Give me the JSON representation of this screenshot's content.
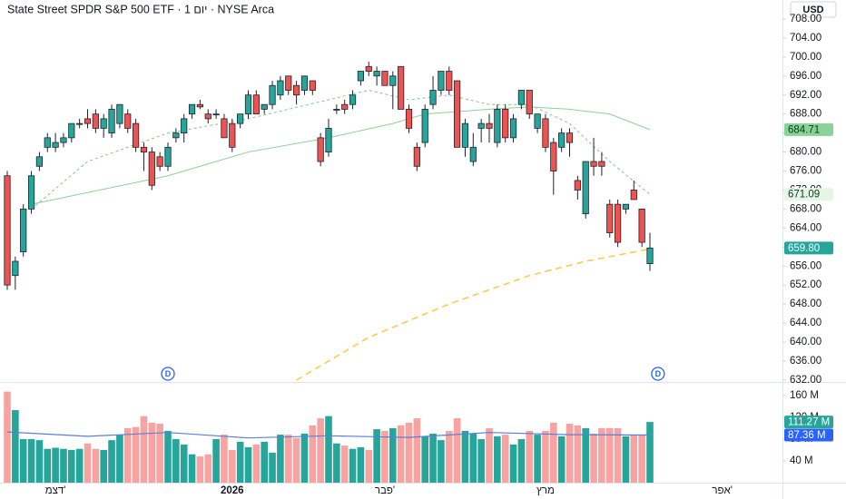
{
  "chart_data": {
    "type": "candlestick",
    "title": "State Street SPDR S&P 500 ETF · 1 יום · NYSE Arca",
    "currency": "USD",
    "up_color": "#26a69a",
    "down_color": "#ef5350",
    "volume_up_color": "#26a69a",
    "volume_down_color": "#f7a3a1",
    "open": [
      675,
      654,
      659,
      668,
      677,
      681,
      681,
      682,
      683,
      686,
      687,
      688,
      685,
      684,
      686,
      688,
      686,
      681,
      680,
      679,
      677,
      683,
      684,
      688,
      690,
      688,
      688,
      687,
      686,
      686,
      688,
      692,
      689,
      690,
      692,
      696,
      694,
      693,
      695,
      683,
      680,
      689,
      690,
      690,
      695,
      698,
      696,
      697,
      694,
      698,
      689,
      681,
      682,
      690,
      693,
      697,
      695,
      681,
      678,
      685,
      686,
      682,
      689,
      683,
      690,
      693,
      685,
      687,
      682,
      681,
      684,
      674,
      667,
      678,
      678,
      669,
      669,
      668,
      672,
      668,
      656.5
    ],
    "high": [
      676,
      658,
      669,
      676,
      680,
      684,
      684,
      684,
      686,
      687,
      689,
      689,
      688,
      690,
      690,
      689,
      687,
      682,
      681,
      680,
      682,
      685,
      688,
      690,
      691,
      689,
      689,
      688,
      687,
      688,
      693,
      693,
      690,
      695,
      696,
      696,
      695,
      696,
      695,
      684,
      687,
      690,
      691,
      693,
      697,
      699,
      698,
      697,
      697,
      698,
      690,
      682,
      690,
      696,
      697,
      698,
      695,
      687,
      684,
      687,
      688,
      690,
      690,
      688,
      693,
      693,
      688,
      688,
      683,
      685,
      685,
      675,
      678,
      683,
      680,
      670,
      670,
      669,
      674,
      668,
      663
    ],
    "low": [
      651,
      651,
      658,
      667,
      676,
      680,
      680,
      681,
      682,
      685,
      685,
      684,
      683,
      683,
      685,
      684,
      680,
      676,
      672,
      676,
      676,
      682,
      682,
      687,
      689,
      686,
      687,
      683,
      680,
      685,
      687,
      688,
      688,
      689,
      691,
      692,
      690,
      692,
      692,
      677,
      679,
      688,
      688,
      689,
      694,
      696,
      694,
      694,
      689,
      689,
      684,
      676,
      681,
      689,
      692,
      692,
      681,
      679,
      677,
      682,
      682,
      681,
      682,
      682,
      689,
      687,
      684,
      680,
      671,
      680,
      679,
      670,
      666,
      675,
      675,
      662,
      660,
      667,
      670,
      660,
      655
    ],
    "close": [
      652,
      657,
      668,
      675,
      679,
      683,
      682,
      683,
      686,
      686,
      686,
      685,
      687,
      689,
      690,
      685,
      681,
      680,
      673,
      677,
      681,
      684,
      687,
      690,
      689.5,
      687,
      688,
      683,
      681,
      688,
      692,
      688,
      690,
      694,
      695,
      693,
      692,
      696,
      693,
      678,
      685,
      689,
      689,
      692,
      697,
      697,
      697,
      694,
      696,
      689,
      685,
      677,
      689,
      693,
      697,
      693,
      681,
      686,
      681,
      686,
      685,
      689,
      683,
      687,
      693,
      688,
      688,
      681,
      676,
      684,
      682,
      672,
      678,
      677,
      677,
      663,
      661,
      669,
      670,
      661,
      659.8
    ],
    "volume": [
      167,
      133,
      80,
      80,
      78,
      62,
      64,
      62,
      60,
      62,
      72,
      62,
      60,
      78,
      88,
      100,
      102,
      122,
      110,
      108,
      95,
      80,
      70,
      52,
      48,
      52,
      80,
      88,
      60,
      75,
      65,
      70,
      75,
      55,
      88,
      88,
      82,
      90,
      105,
      118,
      122,
      72,
      68,
      62,
      65,
      60,
      98,
      95,
      100,
      105,
      110,
      118,
      85,
      90,
      78,
      95,
      118,
      95,
      90,
      80,
      100,
      85,
      88,
      70,
      80,
      95,
      88,
      95,
      110,
      85,
      108,
      105,
      100,
      90,
      100,
      100,
      100,
      85,
      88,
      88,
      111.27
    ],
    "ylim": [
      631.6,
      712
    ],
    "yticks": [
      {
        "value": 708,
        "label": "708.00"
      },
      {
        "value": 704,
        "label": "704.00"
      },
      {
        "value": 700,
        "label": "700.00"
      },
      {
        "value": 696,
        "label": "696.00"
      },
      {
        "value": 692,
        "label": "692.00"
      },
      {
        "value": 688,
        "label": "688.00"
      },
      {
        "value": 684,
        "label": "684.00"
      },
      {
        "value": 680,
        "label": "680.00"
      },
      {
        "value": 676,
        "label": "676.00"
      },
      {
        "value": 672,
        "label": "672.00"
      },
      {
        "value": 668,
        "label": "668.00"
      },
      {
        "value": 664,
        "label": "664.00"
      },
      {
        "value": 660,
        "label": "660.00"
      },
      {
        "value": 656,
        "label": "656.00"
      },
      {
        "value": 652,
        "label": "652.00"
      },
      {
        "value": 648,
        "label": "648.00"
      },
      {
        "value": 644,
        "label": "644.00"
      },
      {
        "value": 640,
        "label": "640.00"
      },
      {
        "value": 636,
        "label": "636.00"
      },
      {
        "value": 632,
        "label": "632.00"
      }
    ],
    "vlim": [
      0,
      183
    ],
    "vticks": [
      {
        "value": 160,
        "label": "160 M"
      },
      {
        "value": 120,
        "label": "120 M"
      },
      {
        "value": 80,
        "label": "80 M"
      },
      {
        "value": 40,
        "label": "40 M"
      }
    ],
    "ma_lines": [
      {
        "color": "#81c784",
        "dash": "3,3",
        "x": [
          3,
          10,
          20,
          30,
          40,
          45,
          50,
          55,
          60,
          65,
          70,
          75,
          80
        ],
        "values": [
          668,
          678,
          684,
          687,
          691,
          693,
          691,
          692,
          690,
          690,
          686,
          678,
          671.09
        ]
      },
      {
        "color": "#8fcf97",
        "dash": "",
        "x": [
          3,
          20,
          30,
          40,
          48,
          52,
          60,
          65,
          70,
          75,
          80
        ],
        "values": [
          669,
          675,
          680,
          683,
          686,
          688,
          689,
          689.5,
          689,
          688,
          684.71
        ]
      },
      {
        "color": "#ffc83d",
        "dash": "7,5",
        "x": [
          36,
          45,
          55,
          65,
          72,
          80
        ],
        "values": [
          632,
          641,
          648,
          654,
          657,
          659.6
        ]
      }
    ],
    "volume_ma": {
      "color": "#5b7fd6",
      "x": [
        0,
        10,
        20,
        30,
        40,
        50,
        60,
        70,
        80
      ],
      "values": [
        93,
        85,
        92,
        82,
        86,
        83,
        92,
        88,
        87.36
      ]
    },
    "price_labels": [
      {
        "value": 684.71,
        "label": "684.71",
        "bg": "#8bd19a",
        "fg": "#0b3d17"
      },
      {
        "value": 671.09,
        "label": "671.09",
        "bg": "#e6f5e8",
        "fg": "#0b3d17"
      },
      {
        "value": 659.8,
        "label": "659.80",
        "bg": "#26a69a",
        "fg": "#ffffff"
      }
    ],
    "volume_labels": [
      {
        "value": 111.27,
        "label": "111.27 M",
        "bg": "#26a69a",
        "fg": "#ffffff"
      },
      {
        "value": 87.36,
        "label": "87.36 M",
        "bg": "#2962ff",
        "fg": "#ffffff"
      }
    ],
    "events": [
      {
        "label": "D",
        "index": 20
      },
      {
        "label": "D",
        "index": 81
      }
    ],
    "xlabels": [
      {
        "label": "דצמ'",
        "index": 6
      },
      {
        "label": "2026",
        "index": 28,
        "bold": true
      },
      {
        "label": "פבר'",
        "index": 47
      },
      {
        "label": "מרץ",
        "index": 67
      },
      {
        "label": "אפר'",
        "index": 89
      }
    ]
  }
}
